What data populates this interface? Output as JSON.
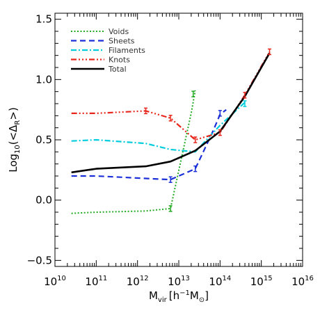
{
  "chart_data": {
    "type": "line",
    "xlabel": {
      "main": "M",
      "sub": "vir",
      "units": "[h",
      "exp": "−1",
      "units2": "M",
      "sun": "⊙",
      "close": "]"
    },
    "ylabel": {
      "main": "Log",
      "sub": "10",
      "open": "(<Δ",
      "sub2": "R",
      "close": ">)"
    },
    "x_scale": "log10",
    "x_range_log10": [
      10,
      16
    ],
    "ylim": [
      -0.55,
      1.55
    ],
    "x_ticks": [
      {
        "base": "10",
        "exp": "10"
      },
      {
        "base": "10",
        "exp": "11"
      },
      {
        "base": "10",
        "exp": "12"
      },
      {
        "base": "10",
        "exp": "13"
      },
      {
        "base": "10",
        "exp": "14"
      },
      {
        "base": "10",
        "exp": "15"
      },
      {
        "base": "10",
        "exp": "16"
      }
    ],
    "y_ticks": [
      "−0.5",
      "0.0",
      "0.5",
      "1.0",
      "1.5"
    ],
    "y_tick_values": [
      -0.5,
      0.0,
      0.5,
      1.0,
      1.5
    ],
    "legend_position": "top-left",
    "series": [
      {
        "name": "Voids",
        "color": "#22aa22",
        "dash": "2,2.5",
        "width": 2,
        "log10_x": [
          10.4,
          11.0,
          12.2,
          12.8,
          13.3,
          13.4
        ],
        "y": [
          -0.11,
          -0.1,
          -0.09,
          -0.07,
          0.72,
          0.91
        ],
        "errors": [
          [
            12.8,
            -0.07
          ],
          [
            13.35,
            0.88
          ]
        ]
      },
      {
        "name": "Sheets",
        "color": "#1a2fd8",
        "dash": "8,5",
        "width": 2.2,
        "log10_x": [
          10.4,
          11.0,
          12.2,
          12.8,
          13.4,
          13.8,
          14.0,
          14.15
        ],
        "y": [
          0.2,
          0.2,
          0.18,
          0.17,
          0.26,
          0.55,
          0.71,
          0.75
        ],
        "errors": [
          [
            12.8,
            0.17
          ],
          [
            13.4,
            0.26
          ],
          [
            14.0,
            0.72
          ]
        ]
      },
      {
        "name": "Filaments",
        "color": "#00ccdd",
        "dash": "8,3,2,3",
        "width": 2.2,
        "log10_x": [
          10.4,
          11.0,
          12.2,
          12.8,
          13.4,
          14.0,
          14.6
        ],
        "y": [
          0.49,
          0.5,
          0.47,
          0.42,
          0.4,
          0.62,
          0.81
        ],
        "errors": [
          [
            14.6,
            0.8
          ]
        ]
      },
      {
        "name": "Knots",
        "color": "#e8261c",
        "dash": "8,3,2,3,2,3,2,3",
        "width": 2.2,
        "log10_x": [
          10.4,
          11.0,
          12.2,
          12.8,
          13.4,
          14.0,
          14.6,
          15.2
        ],
        "y": [
          0.72,
          0.72,
          0.74,
          0.68,
          0.5,
          0.56,
          0.87,
          1.23
        ],
        "errors": [
          [
            12.2,
            0.74
          ],
          [
            12.8,
            0.68
          ],
          [
            13.4,
            0.5
          ],
          [
            14.0,
            0.56
          ],
          [
            14.6,
            0.87
          ],
          [
            15.2,
            1.23
          ]
        ]
      },
      {
        "name": "Total",
        "color": "#000000",
        "dash": "",
        "width": 2.6,
        "log10_x": [
          10.4,
          11.0,
          12.2,
          12.8,
          13.4,
          14.0,
          14.6,
          15.2
        ],
        "y": [
          0.23,
          0.26,
          0.28,
          0.32,
          0.41,
          0.57,
          0.86,
          1.22
        ],
        "errors": []
      }
    ]
  }
}
